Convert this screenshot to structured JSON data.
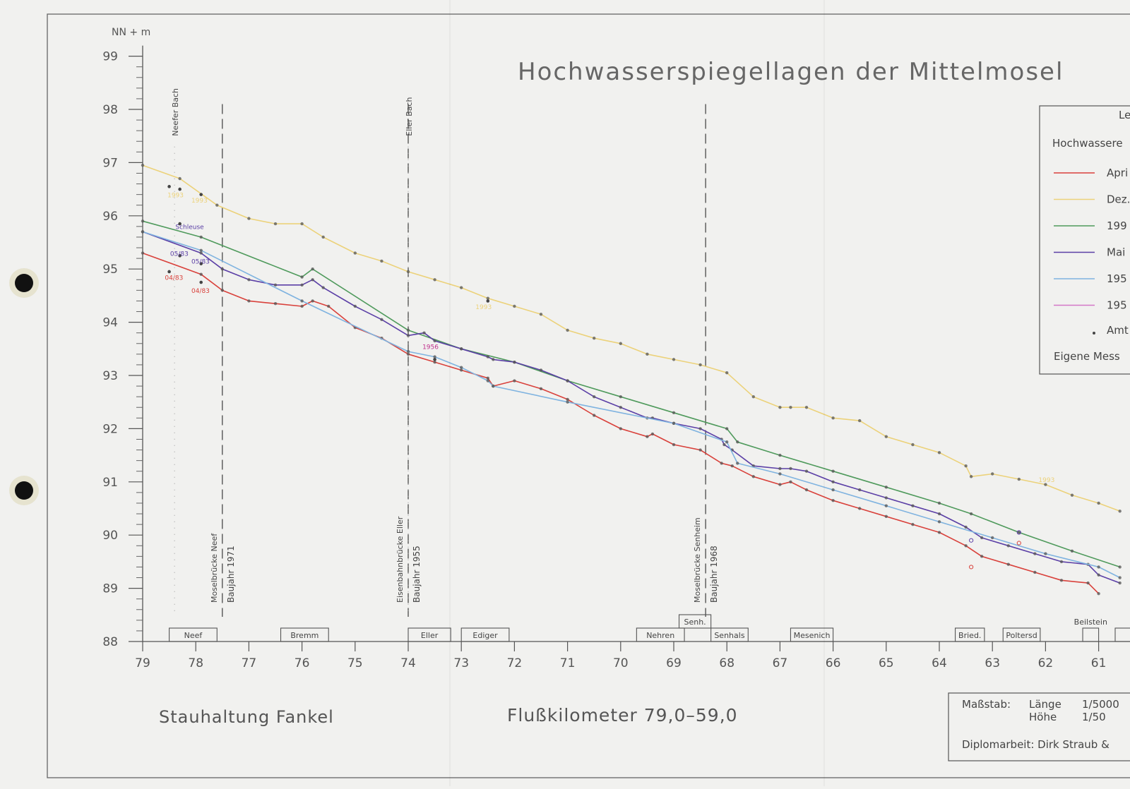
{
  "chart_data": {
    "type": "line",
    "title": "Hochwasserspiegellagen der Mittelmosel",
    "ylabel": "NN + m",
    "xlabel": "Flußkilometer 79,0–59,0",
    "subtitle_left": "Stauhaltung Fankel",
    "xlim": [
      79,
      60.6
    ],
    "ylim": [
      88,
      99
    ],
    "x_ticks": [
      "79",
      "78",
      "77",
      "76",
      "75",
      "74",
      "73",
      "72",
      "71",
      "70",
      "69",
      "68",
      "67",
      "66",
      "65",
      "64",
      "63",
      "62",
      "61"
    ],
    "y_ticks": [
      "88",
      "89",
      "90",
      "91",
      "92",
      "93",
      "94",
      "95",
      "96",
      "97",
      "98",
      "99"
    ],
    "series": [
      {
        "name": "Apri",
        "color": "#d9413b",
        "x": [
          79,
          77.9,
          77.5,
          77.0,
          76.5,
          76.0,
          75.8,
          75.5,
          75.0,
          74.5,
          74.0,
          73.5,
          73.0,
          72.5,
          72.4,
          72.0,
          71.5,
          71.0,
          70.5,
          70.0,
          69.5,
          69.4,
          69.0,
          68.5,
          68.1,
          67.9,
          67.5,
          67.0,
          66.8,
          66.5,
          66.0,
          65.5,
          65.0,
          64.5,
          64.0,
          63.5,
          63.2,
          62.7,
          62.2,
          61.7,
          61.2,
          61.0
        ],
        "y": [
          95.3,
          94.9,
          94.6,
          94.4,
          94.35,
          94.3,
          94.4,
          94.3,
          93.9,
          93.7,
          93.4,
          93.25,
          93.1,
          92.95,
          92.8,
          92.9,
          92.75,
          92.55,
          92.25,
          92.0,
          91.85,
          91.9,
          91.7,
          91.6,
          91.35,
          91.3,
          91.1,
          90.95,
          91.0,
          90.85,
          90.65,
          90.5,
          90.35,
          90.2,
          90.05,
          89.8,
          89.6,
          89.45,
          89.3,
          89.15,
          89.1,
          88.9
        ]
      },
      {
        "name": "Dez.",
        "color": "#ecd27a",
        "x": [
          79,
          78.3,
          77.6,
          77.0,
          76.5,
          76.0,
          75.6,
          75.0,
          74.5,
          74.0,
          73.5,
          73.0,
          72.5,
          72.0,
          71.5,
          71.0,
          70.5,
          70.0,
          69.5,
          69.0,
          68.5,
          68.0,
          67.5,
          67.0,
          66.8,
          66.5,
          66.0,
          65.5,
          65.0,
          64.5,
          64.0,
          63.5,
          63.4,
          63.0,
          62.5,
          62.0,
          61.5,
          61.0,
          60.6
        ],
        "y": [
          96.95,
          96.7,
          96.2,
          95.95,
          95.85,
          95.85,
          95.6,
          95.3,
          95.15,
          94.95,
          94.8,
          94.65,
          94.45,
          94.3,
          94.15,
          93.85,
          93.7,
          93.6,
          93.4,
          93.3,
          93.2,
          93.05,
          92.6,
          92.4,
          92.4,
          92.4,
          92.2,
          92.15,
          91.85,
          91.7,
          91.55,
          91.3,
          91.1,
          91.15,
          91.05,
          90.95,
          90.75,
          90.6,
          90.45
        ]
      },
      {
        "name": "199",
        "color": "#4f9a5c",
        "x": [
          79,
          77.9,
          76.0,
          75.8,
          74.0,
          73.0,
          72.0,
          71.0,
          70.0,
          69.0,
          68.0,
          67.8,
          67.0,
          66.0,
          65.0,
          64.0,
          63.4,
          62.5,
          61.5,
          60.6
        ],
        "y": [
          95.9,
          95.6,
          94.85,
          95.0,
          93.85,
          93.5,
          93.25,
          92.9,
          92.6,
          92.3,
          92.0,
          91.75,
          91.5,
          91.2,
          90.9,
          90.6,
          90.4,
          90.05,
          89.7,
          89.4
        ]
      },
      {
        "name": "Mai",
        "color": "#5b3fa6",
        "x": [
          79,
          77.9,
          77.5,
          77.0,
          76.5,
          76.0,
          75.8,
          75.6,
          75.0,
          74.5,
          74.0,
          73.7,
          73.5,
          73.0,
          72.5,
          72.4,
          72.0,
          71.5,
          71.0,
          70.5,
          70.0,
          69.5,
          69.4,
          69.0,
          68.5,
          68.1,
          68.05,
          67.9,
          67.5,
          67.0,
          66.8,
          66.5,
          66.0,
          65.5,
          65.0,
          64.5,
          64.0,
          63.5,
          63.2,
          62.7,
          62.2,
          61.7,
          61.2,
          61.0,
          60.6
        ],
        "y": [
          95.7,
          95.3,
          95.0,
          94.8,
          94.7,
          94.7,
          94.8,
          94.65,
          94.3,
          94.05,
          93.75,
          93.8,
          93.65,
          93.5,
          93.35,
          93.3,
          93.25,
          93.1,
          92.9,
          92.6,
          92.4,
          92.2,
          92.2,
          92.1,
          92.0,
          91.8,
          91.7,
          91.6,
          91.3,
          91.25,
          91.25,
          91.2,
          91.0,
          90.85,
          90.7,
          90.55,
          90.4,
          90.15,
          89.95,
          89.8,
          89.65,
          89.5,
          89.45,
          89.25,
          89.1
        ]
      },
      {
        "name": "195",
        "color": "#7fb3e0",
        "x": [
          79,
          77.9,
          76.0,
          74.0,
          73.5,
          73.0,
          72.5,
          72.4,
          71.0,
          69.0,
          68.0,
          67.8,
          67.0,
          66.0,
          65.0,
          64.0,
          63.0,
          62.0,
          61.0,
          60.6
        ],
        "y": [
          95.7,
          95.35,
          94.4,
          93.45,
          93.35,
          93.15,
          92.9,
          92.8,
          92.5,
          92.1,
          91.75,
          91.35,
          91.15,
          90.85,
          90.55,
          90.25,
          89.95,
          89.65,
          89.4,
          89.2
        ]
      }
    ],
    "points_black": [
      [
        78.5,
        96.55
      ],
      [
        78.3,
        96.5
      ],
      [
        77.9,
        96.4
      ],
      [
        78.3,
        95.85
      ],
      [
        78.3,
        95.25
      ],
      [
        77.9,
        95.1
      ],
      [
        78.5,
        94.95
      ],
      [
        77.9,
        94.75
      ],
      [
        73.5,
        93.3
      ],
      [
        72.5,
        94.4
      ]
    ],
    "points_red": [
      [
        63.4,
        89.4
      ],
      [
        62.5,
        89.85
      ]
    ],
    "points_purple": [
      [
        63.4,
        89.9
      ],
      [
        62.5,
        90.05
      ]
    ],
    "data_labels": [
      {
        "text": "1993",
        "x": 78.4,
        "y": 96.35,
        "color": "#ecd27a"
      },
      {
        "text": "1993",
        "x": 77.95,
        "y": 96.25,
        "color": "#ecd27a"
      },
      {
        "text": "Schleuse",
        "x": 78.25,
        "y": 95.75,
        "color": "#5b3fa6"
      },
      {
        "text": "05/83",
        "x": 78.35,
        "y": 95.25,
        "color": "#5b3fa6"
      },
      {
        "text": "05/83",
        "x": 77.95,
        "y": 95.1,
        "color": "#5b3fa6"
      },
      {
        "text": "04/83",
        "x": 78.45,
        "y": 94.8,
        "color": "#d9413b"
      },
      {
        "text": "04/83",
        "x": 77.95,
        "y": 94.55,
        "color": "#d9413b"
      },
      {
        "text": "1956",
        "x": 73.6,
        "y": 93.5,
        "color": "#c0308c"
      },
      {
        "text": "1993",
        "x": 72.6,
        "y": 94.25,
        "color": "#ecd27a"
      },
      {
        "text": "1993",
        "x": 62.0,
        "y": 91.0,
        "color": "#ecd27a"
      }
    ],
    "vertical_markers": [
      {
        "x": 77.5,
        "label": "Moselbrücke Neef",
        "sublabel": "Baujahr 1971"
      },
      {
        "x": 74.0,
        "label": "Eisenbahnbrücke Eller",
        "sublabel": "Baujahr 1955"
      },
      {
        "x": 68.4,
        "label": "Moselbrücke Senheim",
        "sublabel": "Baujahr 1968"
      }
    ],
    "stream_labels": [
      {
        "x": 78.4,
        "label": "Neefer Bach"
      },
      {
        "x": 74.0,
        "label": "Eller Bach"
      }
    ],
    "town_boxes": [
      {
        "label": "Neef",
        "x1": 78.5,
        "x2": 77.6
      },
      {
        "label": "Bremm",
        "x1": 76.4,
        "x2": 75.5
      },
      {
        "label": "Eller",
        "x1": 74.0,
        "x2": 73.2
      },
      {
        "label": "Ediger",
        "x1": 73.0,
        "x2": 72.1
      },
      {
        "label": "Nehren",
        "x1": 69.7,
        "x2": 68.8
      },
      {
        "label": "Senh.",
        "x1": 68.9,
        "x2": 68.3,
        "raised": true
      },
      {
        "label": "Senhals",
        "x1": 68.3,
        "x2": 67.6
      },
      {
        "label": "Mesenich",
        "x1": 66.8,
        "x2": 66.0
      },
      {
        "label": "Bried.",
        "x1": 63.7,
        "x2": 63.15
      },
      {
        "label": "Poltersd",
        "x1": 62.8,
        "x2": 62.1
      },
      {
        "label": "Beilstein",
        "x1": 61.3,
        "x2": 61.0
      }
    ],
    "legend": {
      "title": "Le",
      "subtitle": "Hochwassere",
      "entries": [
        {
          "label": "Apri",
          "color": "#d9413b"
        },
        {
          "label": "Dez.",
          "color": "#ecd27a"
        },
        {
          "label": "199",
          "color": "#4f9a5c"
        },
        {
          "label": "Mai",
          "color": "#5b3fa6"
        },
        {
          "label": "195",
          "color": "#7fb3e0"
        },
        {
          "label": "195",
          "color": "#d478c8"
        }
      ],
      "amt": "Amt",
      "eigene": "Eigene Mess"
    },
    "scale_box": {
      "label": "Maßstab:",
      "laenge": "Länge",
      "laenge_val": "1/5000",
      "hoehe": "Höhe",
      "hoehe_val": "1/50",
      "credit": "Diplomarbeit: Dirk Straub &"
    }
  }
}
